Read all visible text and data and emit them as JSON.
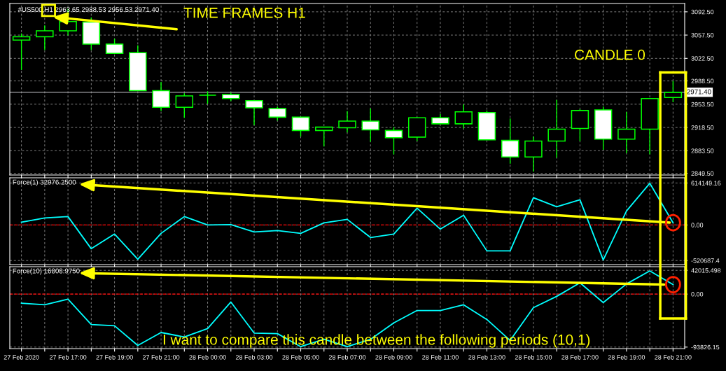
{
  "chart_data": [
    {
      "type": "candlestick",
      "title": "#US500,H1 2963.65 2988.53 2956.53 2971.40",
      "color": "#00ff00",
      "categories": [
        null,
        null,
        null,
        null,
        null,
        null,
        null,
        null,
        null,
        null,
        null,
        null,
        null,
        null,
        null,
        null,
        null,
        null,
        null,
        null,
        null,
        null,
        null,
        null,
        null,
        null,
        null,
        null,
        null
      ],
      "ohlc": [
        [
          3050,
          3060,
          3005,
          3055
        ],
        [
          3055,
          3072,
          3035,
          3064
        ],
        [
          3064,
          3097,
          3057,
          3078
        ],
        [
          3077,
          3084,
          3035,
          3044
        ],
        [
          3044,
          3052,
          3030,
          3030
        ],
        [
          3031,
          3042,
          2974,
          2974
        ],
        [
          2974,
          2987,
          2943,
          2949
        ],
        [
          2949,
          2970,
          2933,
          2966
        ],
        [
          2967,
          2973,
          2954,
          2967
        ],
        [
          2968,
          2971,
          2958,
          2962
        ],
        [
          2959,
          2959,
          2922,
          2948
        ],
        [
          2947,
          2950,
          2929,
          2934
        ],
        [
          2934,
          2934,
          2905,
          2914
        ],
        [
          2914,
          2919,
          2890,
          2919
        ],
        [
          2918,
          2943,
          2911,
          2928
        ],
        [
          2928,
          2947,
          2897,
          2915
        ],
        [
          2914,
          2919,
          2878,
          2903
        ],
        [
          2904,
          2933,
          2898,
          2933
        ],
        [
          2933,
          2939,
          2924,
          2924
        ],
        [
          2924,
          2953,
          2917,
          2942
        ],
        [
          2941,
          2944,
          2900,
          2900
        ],
        [
          2899,
          2932,
          2864,
          2874
        ],
        [
          2874,
          2905,
          2852,
          2898
        ],
        [
          2898,
          2960,
          2873,
          2916
        ],
        [
          2917,
          2946,
          2898,
          2944
        ],
        [
          2945,
          2950,
          2885,
          2901
        ],
        [
          2901,
          2942,
          2880,
          2916
        ],
        [
          2916,
          2962,
          2878,
          2962
        ],
        [
          2963.65,
          2988.53,
          2956.53,
          2971.4
        ]
      ],
      "ylim": [
        2847,
        3105
      ],
      "yticks": [
        {
          "value": 2849.5,
          "label": "2849.50"
        },
        {
          "value": 2883.5,
          "label": "2883.50"
        },
        {
          "value": 2918.5,
          "label": "2918.50"
        },
        {
          "value": 2953.5,
          "label": "2953.50"
        },
        {
          "value": 2988.5,
          "label": "2988.50"
        },
        {
          "value": 3022.5,
          "label": "3022.50"
        },
        {
          "value": 3057.5,
          "label": "3057.50"
        },
        {
          "value": 3092.5,
          "label": "3092.50"
        }
      ],
      "tick_labels": "y",
      "grid": true,
      "ref_lines": [
        {
          "axis": "y",
          "value": 2971.4,
          "label": "2971.40",
          "color": "#a0a0a4"
        }
      ],
      "annotations": [
        "TIME FRAMES H1",
        "CANDLE 0"
      ]
    },
    {
      "type": "line",
      "title": "Force(1) 32976.2500",
      "categories": [
        null,
        null,
        null,
        null,
        null,
        null,
        null,
        null,
        null,
        null,
        null,
        null,
        null,
        null,
        null,
        null,
        null,
        null,
        null,
        null,
        null,
        null,
        null,
        null,
        null,
        null,
        null,
        null,
        null
      ],
      "series": [
        {
          "color": "#00ffff",
          "values": [
            41000,
            102000,
            123000,
            -348000,
            -133000,
            -502000,
            -123000,
            123000,
            0,
            5000,
            -102000,
            -82000,
            -123000,
            31000,
            82000,
            -184000,
            -133000,
            246000,
            -61000,
            143000,
            -379000,
            -379000,
            399000,
            266000,
            368000,
            -512000,
            205000,
            610000,
            32976.25
          ]
        }
      ],
      "ylim": [
        -580000,
        690000
      ],
      "yticks": [
        {
          "value": -520687.4,
          "label": "-520687.4"
        },
        {
          "value": 0,
          "label": "0.00"
        },
        {
          "value": 614149.16,
          "label": "614149.16"
        }
      ],
      "tick_labels": "y",
      "grid": true,
      "ref_lines": [
        {
          "axis": "y",
          "value": 0,
          "color": "#ff0000",
          "line_style": "dashed"
        }
      ]
    },
    {
      "type": "line",
      "title": "Force(10) 16808.9750",
      "categories": [
        "27 Feb 2020",
        null,
        "27 Feb 17:00",
        null,
        "27 Feb 19:00",
        null,
        "27 Feb 21:00",
        null,
        "28 Feb 00:00",
        null,
        "28 Feb 03:00",
        null,
        "28 Feb 05:00",
        null,
        "28 Feb 07:00",
        null,
        "28 Feb 09:00",
        null,
        "28 Feb 11:00",
        null,
        "28 Feb 13:00",
        null,
        "28 Feb 15:00",
        null,
        "28 Feb 17:00",
        null,
        "28 Feb 19:00",
        null,
        "28 Feb 21:00"
      ],
      "series": [
        {
          "color": "#00ffff",
          "values": [
            -16000,
            -19000,
            -9000,
            -54000,
            -56000,
            -91000,
            -68000,
            -76000,
            -61000,
            -14000,
            -69000,
            -70000,
            -93000,
            -80000,
            -93000,
            -80000,
            -51000,
            -29000,
            -29000,
            -19000,
            -45000,
            -82000,
            -24000,
            -4000,
            20000,
            -15000,
            18000,
            41000,
            16808.975
          ]
        }
      ],
      "ylim": [
        -96500,
        48500
      ],
      "yticks": [
        {
          "value": -93826.15,
          "label": "-93826.15"
        },
        {
          "value": 0,
          "label": "0.00"
        },
        {
          "value": 42015.498,
          "label": "42015.498"
        }
      ],
      "grid": true,
      "ref_lines": [
        {
          "axis": "y",
          "value": 0,
          "color": "#ff0000",
          "line_style": "dashed"
        }
      ],
      "annotations": [
        "I want to compare this candle between the following periods (10,1)"
      ]
    }
  ]
}
